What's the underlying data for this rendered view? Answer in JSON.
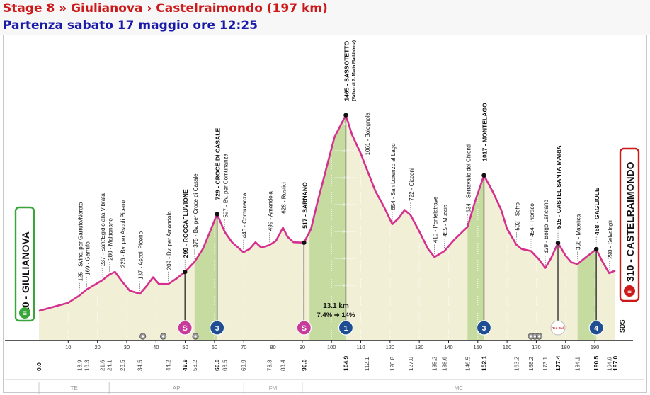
{
  "header": {
    "title": "Stage 8 » Giulianova › Castelraimondo (197 km)",
    "subtitle": "Partenza sabato 17 maggio ore 12:25"
  },
  "colors": {
    "title": "#cc1a1a",
    "subtitle": "#1a1aa8",
    "profile_line": "#d6308f",
    "fill": "#f1efd6",
    "climb_fill": "#c6dba0",
    "start_border": "#3aa53a",
    "finish_border": "#cc1a1a",
    "sprint_badge": "#c73c9a",
    "kom_badge": "#1f4e93"
  },
  "start": {
    "label": "10 - GIULIANOVA"
  },
  "finish": {
    "label": "310 - CASTELRAIMONDO"
  },
  "climb_info": {
    "distance": "13.1 km",
    "gradient": "7.4% ➜ 14%"
  },
  "watermark": "SDS",
  "chart_data": {
    "type": "area",
    "xlabel": "",
    "ylabel": "",
    "xlim": [
      0,
      197
    ],
    "ylim": [
      0,
      1600
    ],
    "grid": true,
    "x_ticks": [
      10,
      20,
      30,
      40,
      50,
      60,
      70,
      80,
      90,
      100,
      110,
      120,
      130,
      140,
      150,
      160,
      170,
      180,
      190
    ],
    "y_ticks": [
      200,
      400,
      600,
      800,
      1000,
      1200,
      1400
    ],
    "profile": [
      [
        0,
        10
      ],
      [
        5,
        40
      ],
      [
        10,
        70
      ],
      [
        13.9,
        125
      ],
      [
        16.3,
        169
      ],
      [
        18,
        190
      ],
      [
        21.6,
        237
      ],
      [
        24.1,
        280
      ],
      [
        26,
        300
      ],
      [
        28.5,
        226
      ],
      [
        31,
        160
      ],
      [
        34.5,
        137
      ],
      [
        37,
        200
      ],
      [
        39,
        260
      ],
      [
        41,
        210
      ],
      [
        44.2,
        209
      ],
      [
        47,
        250
      ],
      [
        49.9,
        299
      ],
      [
        53.2,
        375
      ],
      [
        56,
        470
      ],
      [
        58.5,
        600
      ],
      [
        60.9,
        729
      ],
      [
        63.5,
        597
      ],
      [
        66,
        520
      ],
      [
        69.9,
        446
      ],
      [
        72,
        470
      ],
      [
        74,
        520
      ],
      [
        76,
        480
      ],
      [
        78.8,
        499
      ],
      [
        81,
        530
      ],
      [
        83.4,
        628
      ],
      [
        85,
        560
      ],
      [
        87,
        520
      ],
      [
        90.6,
        517
      ],
      [
        93,
        620
      ],
      [
        95,
        800
      ],
      [
        98,
        1050
      ],
      [
        101,
        1300
      ],
      [
        104.9,
        1465
      ],
      [
        107,
        1320
      ],
      [
        110,
        1180
      ],
      [
        112.1,
        1061
      ],
      [
        115,
        900
      ],
      [
        118,
        780
      ],
      [
        120.8,
        654
      ],
      [
        123,
        700
      ],
      [
        125,
        760
      ],
      [
        127,
        722
      ],
      [
        130,
        600
      ],
      [
        133,
        470
      ],
      [
        135.2,
        410
      ],
      [
        138.6,
        455
      ],
      [
        142,
        540
      ],
      [
        146.5,
        634
      ],
      [
        149,
        820
      ],
      [
        152.1,
        1017
      ],
      [
        155,
        900
      ],
      [
        158,
        760
      ],
      [
        160,
        620
      ],
      [
        163.2,
        502
      ],
      [
        165,
        470
      ],
      [
        168.2,
        454
      ],
      [
        171,
        390
      ],
      [
        173.1,
        329
      ],
      [
        175,
        400
      ],
      [
        177.4,
        515
      ],
      [
        180,
        420
      ],
      [
        182,
        370
      ],
      [
        184.1,
        358
      ],
      [
        187,
        410
      ],
      [
        190.5,
        468
      ],
      [
        192.5,
        380
      ],
      [
        194.9,
        290
      ],
      [
        197,
        310
      ]
    ],
    "climbs": [
      {
        "from": 53.2,
        "to": 60.9
      },
      {
        "from": 92.5,
        "to": 104.9
      },
      {
        "from": 146.5,
        "to": 152.1
      },
      {
        "from": 184.1,
        "to": 190.5
      }
    ],
    "waypoints": [
      {
        "km": 13.9,
        "label": "125 - Svinc. per Garrufo/Nereto",
        "bold": false
      },
      {
        "km": 16.3,
        "label": "169 - Garrufo",
        "bold": false
      },
      {
        "km": 21.6,
        "label": "237 - Sant'Egidio alla Vibrata",
        "bold": false
      },
      {
        "km": 24.1,
        "label": "280 - Maltignano",
        "bold": false
      },
      {
        "km": 28.5,
        "label": "226 - Bv. per Ascoli Piceno",
        "bold": false
      },
      {
        "km": 34.5,
        "label": "137 - Ascoli Piceno",
        "bold": false
      },
      {
        "km": 44.2,
        "label": "209 - Bv. per Amandola",
        "bold": false
      },
      {
        "km": 49.9,
        "label": "299 - ROCCAFLUVIONE",
        "bold": true
      },
      {
        "km": 53.2,
        "label": "375 - Bv. per Croce di Casale",
        "bold": false
      },
      {
        "km": 60.9,
        "label": "729 - CROCE DI CASALE",
        "bold": true
      },
      {
        "km": 63.5,
        "label": "597 - Bv. per Comunanza",
        "bold": false
      },
      {
        "km": 69.9,
        "label": "446 - Comunanza",
        "bold": false
      },
      {
        "km": 78.8,
        "label": "499 - Amandola",
        "bold": false
      },
      {
        "km": 83.4,
        "label": "628 - Rustici",
        "bold": false
      },
      {
        "km": 90.6,
        "label": "517 - SARNANO",
        "bold": true
      },
      {
        "km": 104.9,
        "label": "1465 - SASSOTETTO",
        "bold": true,
        "sub": "(Valico di S. Maria Maddalena)"
      },
      {
        "km": 112.1,
        "label": "1061 - Bolognola",
        "bold": false
      },
      {
        "km": 120.8,
        "label": "654 - San Lorenzo al Lago",
        "bold": false
      },
      {
        "km": 127.0,
        "label": "722 - Cicconi",
        "bold": false
      },
      {
        "km": 135.2,
        "label": "410 - Pontelatrave",
        "bold": false
      },
      {
        "km": 138.6,
        "label": "455 - Muccia",
        "bold": false
      },
      {
        "km": 146.5,
        "label": "634 - Serravalle del Chienti",
        "bold": false
      },
      {
        "km": 152.1,
        "label": "1017 - MONTELAGO",
        "bold": true
      },
      {
        "km": 163.2,
        "label": "502 - Sefro",
        "bold": false
      },
      {
        "km": 168.2,
        "label": "454 - Pioraco",
        "bold": false
      },
      {
        "km": 173.1,
        "label": "329 - Borgo Lanciano",
        "bold": false
      },
      {
        "km": 177.4,
        "label": "515 - CASTEL SANTA MARIA",
        "bold": true
      },
      {
        "km": 184.1,
        "label": "358 - Matelica",
        "bold": false
      },
      {
        "km": 190.5,
        "label": "468 - GAGLIOLE",
        "bold": true
      },
      {
        "km": 194.9,
        "label": "290 - Selvalagli",
        "bold": false
      }
    ],
    "km_markers": [
      "0.0",
      "13.9",
      "16.3",
      "21.6",
      "24.1",
      "28.5",
      "34.5",
      "44.2",
      "49.9",
      "53.2",
      "60.9",
      "63.5",
      "69.9",
      "78.8",
      "83.4",
      "90.6",
      "104.9",
      "112.1",
      "120.8",
      "127.0",
      "135.2",
      "138.6",
      "146.5",
      "152.1",
      "163.2",
      "168.2",
      "173.1",
      "177.4",
      "184.1",
      "190.5",
      "194.9",
      "197.0"
    ],
    "bold_markers": [
      "0.0",
      "49.9",
      "60.9",
      "90.6",
      "104.9",
      "152.1",
      "177.4",
      "190.5",
      "197.0"
    ],
    "badges": [
      {
        "km": 49.9,
        "type": "sprint",
        "text": "S"
      },
      {
        "km": 60.9,
        "type": "kom",
        "text": "3"
      },
      {
        "km": 90.6,
        "type": "sprint",
        "text": "S"
      },
      {
        "km": 104.9,
        "type": "kom",
        "text": "1"
      },
      {
        "km": 152.1,
        "type": "kom",
        "text": "3"
      },
      {
        "km": 177.4,
        "type": "redbull",
        "text": "Red Bull"
      },
      {
        "km": 190.5,
        "type": "kom",
        "text": "4"
      }
    ],
    "small_icons": [
      35.5,
      42.5,
      53.5,
      168.2,
      169.5,
      171
    ]
  },
  "provinces": [
    {
      "label": "TE",
      "from": 0,
      "to": 24
    },
    {
      "label": "AP",
      "from": 24,
      "to": 70
    },
    {
      "label": "FM",
      "from": 70,
      "to": 90
    },
    {
      "label": "MC",
      "from": 90,
      "to": 197
    }
  ]
}
